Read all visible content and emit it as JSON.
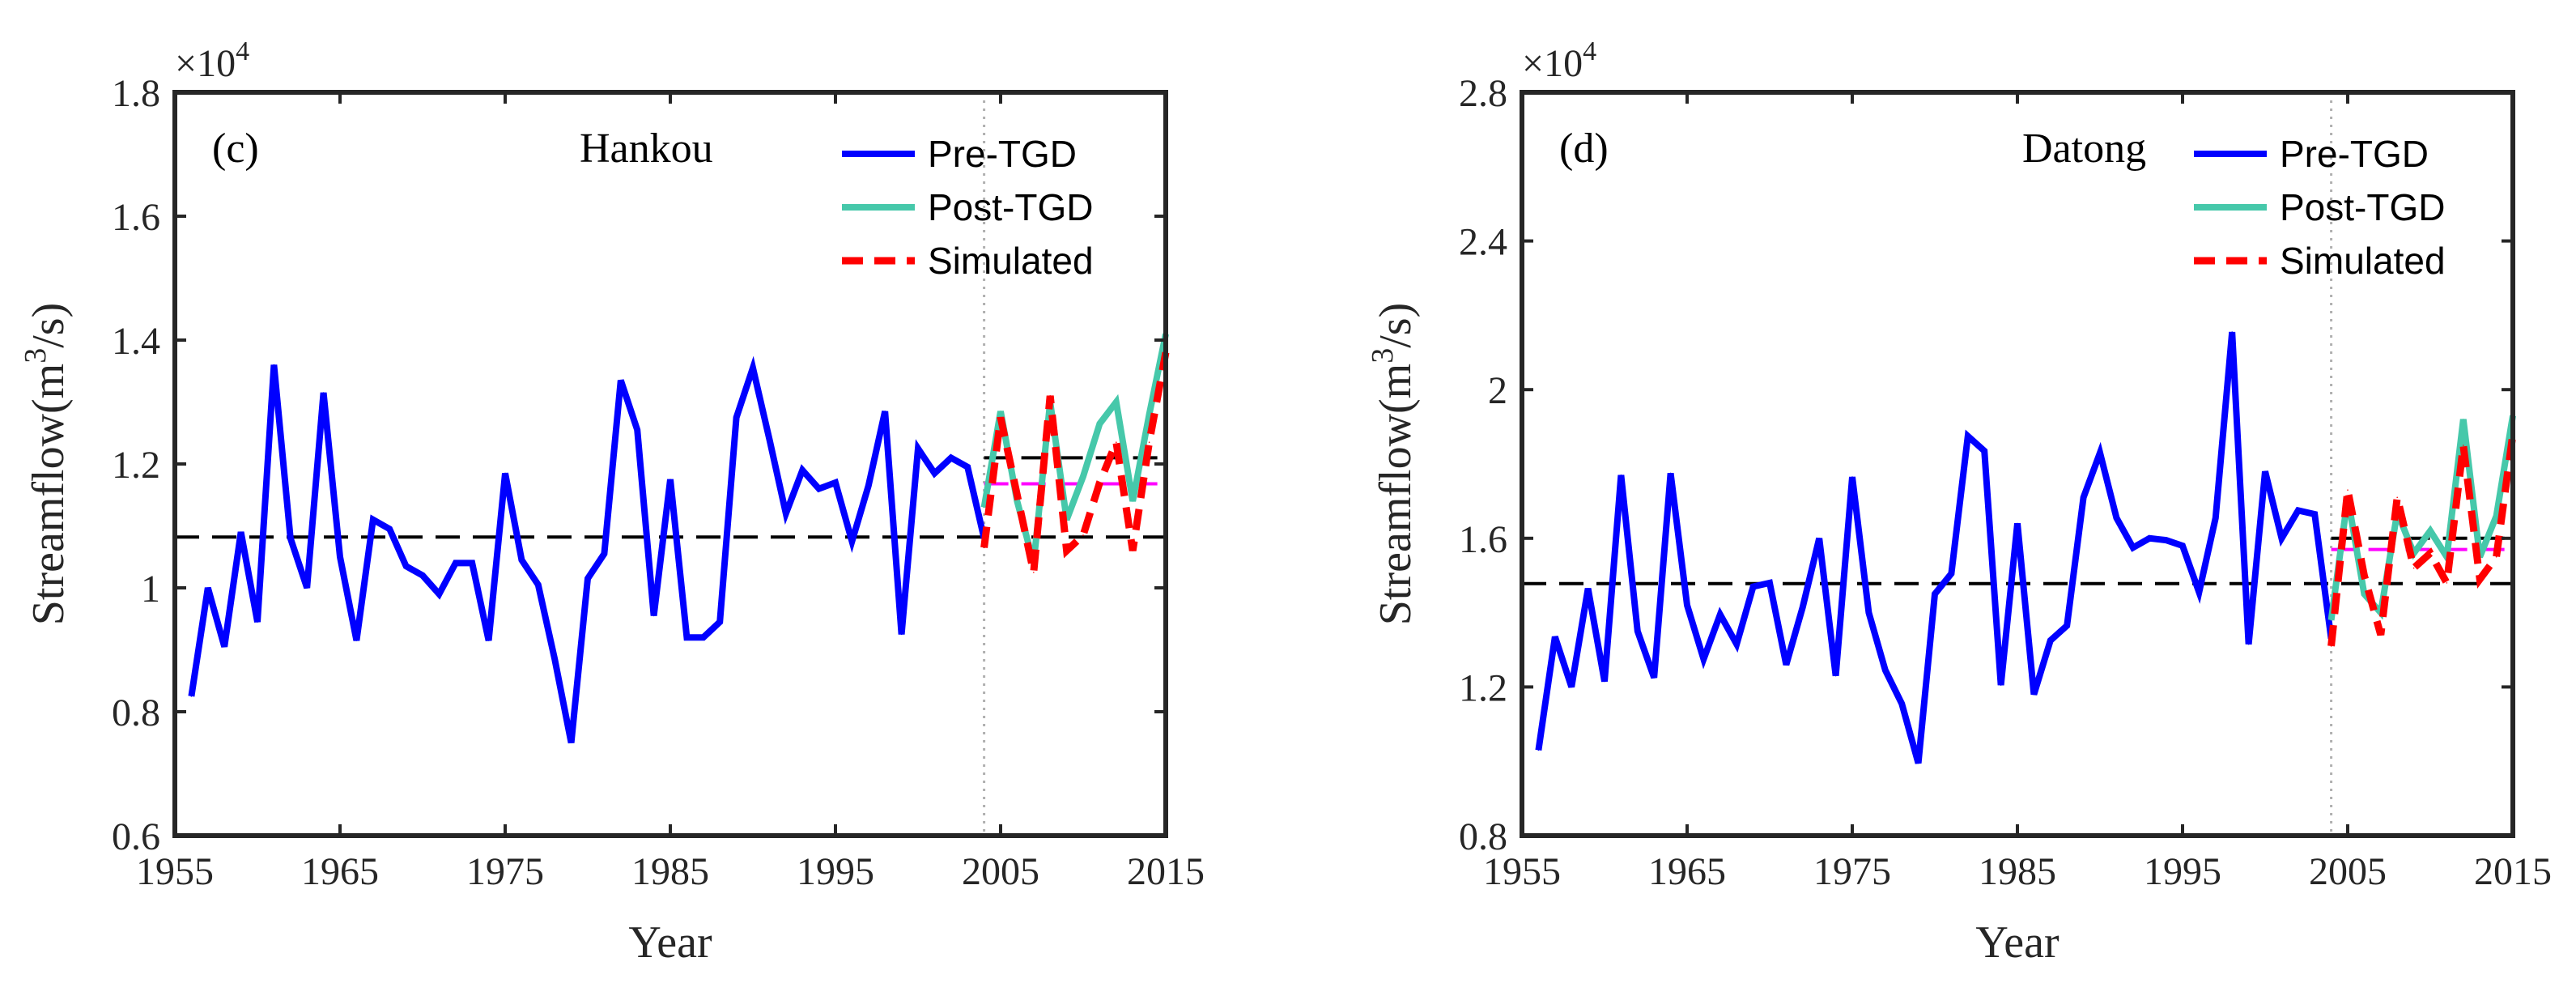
{
  "colors": {
    "pre": "#0000ff",
    "post": "#46c8aa",
    "sim": "#ff0000",
    "pre_mean": "#000000",
    "post_mean": "#000000",
    "sim_mean": "#ff00ff",
    "divider": "#b0b0b0"
  },
  "chart_data": [
    {
      "type": "line",
      "panel": "(c)",
      "title": "Hankou",
      "xlabel": "Year",
      "ylabel_main": "Streamflow(m",
      "ylabel_sup": "3",
      "ylabel_tail": "/s)",
      "multiplier_base": "×10",
      "multiplier_exp": "4",
      "xlim": [
        1955,
        2015
      ],
      "ylim": [
        0.6,
        1.8
      ],
      "xticks": [
        1955,
        1965,
        1975,
        1985,
        1995,
        2005,
        2015
      ],
      "yticks": [
        0.6,
        0.8,
        1.0,
        1.2,
        1.4,
        1.6,
        1.8
      ],
      "ytick_labels": [
        "0.6",
        "0.8",
        "1",
        "1.2",
        "1.4",
        "1.6",
        "1.8"
      ],
      "divider_year": 2004,
      "legend": [
        "Pre-TGD",
        "Post-TGD",
        "Simulated"
      ],
      "series": [
        {
          "name": "Pre-TGD",
          "x": [
            1956,
            1957,
            1958,
            1959,
            1960,
            1961,
            1962,
            1963,
            1964,
            1965,
            1966,
            1967,
            1968,
            1969,
            1970,
            1971,
            1972,
            1973,
            1974,
            1975,
            1976,
            1977,
            1978,
            1979,
            1980,
            1981,
            1982,
            1983,
            1984,
            1985,
            1986,
            1987,
            1988,
            1989,
            1990,
            1991,
            1992,
            1993,
            1994,
            1995,
            1996,
            1997,
            1998,
            1999,
            2000,
            2001,
            2002,
            2003,
            2004
          ],
          "y": [
            0.825,
            1.0,
            0.905,
            1.09,
            0.945,
            1.36,
            1.08,
            1.0,
            1.315,
            1.05,
            0.915,
            1.11,
            1.095,
            1.035,
            1.02,
            0.99,
            1.04,
            1.04,
            0.915,
            1.185,
            1.045,
            1.005,
            0.885,
            0.75,
            1.015,
            1.055,
            1.335,
            1.255,
            0.955,
            1.175,
            0.92,
            0.92,
            0.945,
            1.275,
            1.355,
            1.24,
            1.12,
            1.19,
            1.16,
            1.17,
            1.075,
            1.165,
            1.285,
            0.925,
            1.225,
            1.185,
            1.21,
            1.195,
            1.08
          ]
        },
        {
          "name": "Post-TGD",
          "x": [
            2004,
            2005,
            2006,
            2007,
            2008,
            2009,
            2010,
            2011,
            2012,
            2013,
            2014,
            2015
          ],
          "y": [
            1.13,
            1.285,
            1.14,
            1.04,
            1.3,
            1.11,
            1.18,
            1.265,
            1.3,
            1.14,
            1.28,
            1.41
          ]
        },
        {
          "name": "Simulated",
          "x": [
            2004,
            2005,
            2006,
            2007,
            2008,
            2009,
            2010,
            2011,
            2012,
            2013,
            2014,
            2015
          ],
          "y": [
            1.065,
            1.275,
            1.15,
            1.025,
            1.31,
            1.06,
            1.085,
            1.17,
            1.235,
            1.06,
            1.235,
            1.38
          ]
        }
      ],
      "hlines": [
        {
          "name": "Pre-TGD mean",
          "value": 1.082,
          "x": [
            1955,
            2015
          ],
          "role": "pre_mean"
        },
        {
          "name": "Post-TGD mean",
          "value": 1.21,
          "x": [
            2004,
            2015
          ],
          "role": "post_mean"
        },
        {
          "name": "Simulated mean",
          "value": 1.168,
          "x": [
            2004,
            2015
          ],
          "role": "sim_mean"
        }
      ]
    },
    {
      "type": "line",
      "panel": "(d)",
      "title": "Datong",
      "xlabel": "Year",
      "ylabel_main": "Streamflow(m",
      "ylabel_sup": "3",
      "ylabel_tail": "/s)",
      "multiplier_base": "×10",
      "multiplier_exp": "4",
      "xlim": [
        1955,
        2015
      ],
      "ylim": [
        0.8,
        2.8
      ],
      "xticks": [
        1955,
        1965,
        1975,
        1985,
        1995,
        2005,
        2015
      ],
      "yticks": [
        0.8,
        1.2,
        1.6,
        2.0,
        2.4,
        2.8
      ],
      "ytick_labels": [
        "0.8",
        "1.2",
        "1.6",
        "2",
        "2.4",
        "2.8"
      ],
      "divider_year": 2004,
      "legend": [
        "Pre-TGD",
        "Post-TGD",
        "Simulated"
      ],
      "series": [
        {
          "name": "Pre-TGD",
          "x": [
            1956,
            1957,
            1958,
            1959,
            1960,
            1961,
            1962,
            1963,
            1964,
            1965,
            1966,
            1967,
            1968,
            1969,
            1970,
            1971,
            1972,
            1973,
            1974,
            1975,
            1976,
            1977,
            1978,
            1979,
            1980,
            1981,
            1982,
            1983,
            1984,
            1985,
            1986,
            1987,
            1988,
            1989,
            1990,
            1991,
            1992,
            1993,
            1994,
            1995,
            1996,
            1997,
            1998,
            1999,
            2000,
            2001,
            2002,
            2003,
            2004
          ],
          "y": [
            1.03,
            1.335,
            1.2,
            1.465,
            1.215,
            1.77,
            1.35,
            1.225,
            1.775,
            1.42,
            1.275,
            1.395,
            1.315,
            1.47,
            1.48,
            1.26,
            1.415,
            1.6,
            1.23,
            1.765,
            1.4,
            1.245,
            1.155,
            0.995,
            1.45,
            1.505,
            1.875,
            1.835,
            1.205,
            1.64,
            1.18,
            1.325,
            1.365,
            1.71,
            1.83,
            1.655,
            1.575,
            1.6,
            1.595,
            1.58,
            1.455,
            1.655,
            2.155,
            1.315,
            1.78,
            1.6,
            1.675,
            1.665,
            1.33
          ]
        },
        {
          "name": "Post-TGD",
          "x": [
            2004,
            2005,
            2006,
            2007,
            2008,
            2009,
            2010,
            2011,
            2012,
            2013,
            2014,
            2015
          ],
          "y": [
            1.38,
            1.71,
            1.45,
            1.4,
            1.67,
            1.56,
            1.62,
            1.55,
            1.92,
            1.55,
            1.66,
            1.93
          ]
        },
        {
          "name": "Simulated",
          "x": [
            2004,
            2005,
            2006,
            2007,
            2008,
            2009,
            2010,
            2011,
            2012,
            2013,
            2014,
            2015
          ],
          "y": [
            1.31,
            1.73,
            1.5,
            1.34,
            1.71,
            1.52,
            1.56,
            1.48,
            1.85,
            1.49,
            1.55,
            1.88
          ]
        }
      ],
      "hlines": [
        {
          "name": "Pre-TGD mean",
          "value": 1.478,
          "x": [
            1955,
            2015
          ],
          "role": "pre_mean"
        },
        {
          "name": "Post-TGD mean",
          "value": 1.6,
          "x": [
            2004,
            2015
          ],
          "role": "post_mean"
        },
        {
          "name": "Simulated mean",
          "value": 1.57,
          "x": [
            2004,
            2015
          ],
          "role": "sim_mean"
        }
      ]
    }
  ]
}
